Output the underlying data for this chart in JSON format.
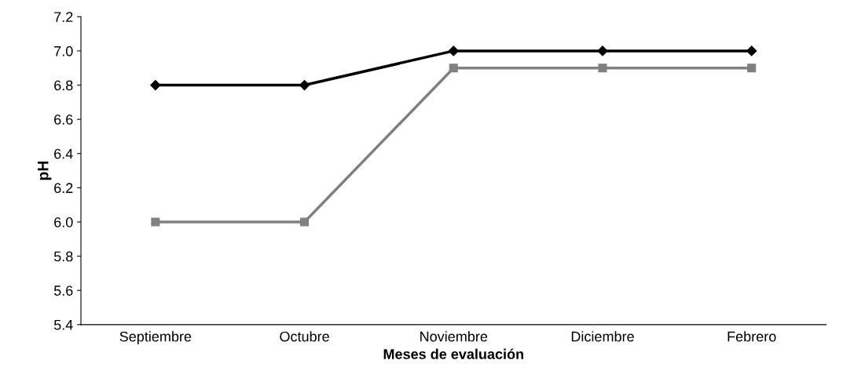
{
  "chart_data": {
    "type": "line",
    "xlabel": "Meses de evaluación",
    "ylabel": "pH",
    "categories": [
      "Septiembre",
      "Octubre",
      "Noviembre",
      "Diciembre",
      "Febrero"
    ],
    "series": [
      {
        "color": "#000000",
        "marker": "diamond",
        "values": [
          6.8,
          6.8,
          7.0,
          7.0,
          7.0
        ]
      },
      {
        "color": "#808080",
        "marker": "square",
        "values": [
          6.0,
          6.0,
          6.9,
          6.9,
          6.9
        ]
      }
    ],
    "ylim": [
      5.4,
      7.2
    ],
    "yticks": [
      {
        "value": 5.4,
        "label": "5.4"
      },
      {
        "value": 5.6,
        "label": "5.6"
      },
      {
        "value": 5.8,
        "label": "5.8"
      },
      {
        "value": 6.0,
        "label": "6.0"
      },
      {
        "value": 6.2,
        "label": "6.2"
      },
      {
        "value": 6.4,
        "label": "6.4"
      },
      {
        "value": 6.6,
        "label": "6.6"
      },
      {
        "value": 6.8,
        "label": "6.8"
      },
      {
        "value": 7.0,
        "label": "7.0"
      },
      {
        "value": 7.2,
        "label": "7.2"
      }
    ],
    "grid": false,
    "line_style": "solid"
  }
}
